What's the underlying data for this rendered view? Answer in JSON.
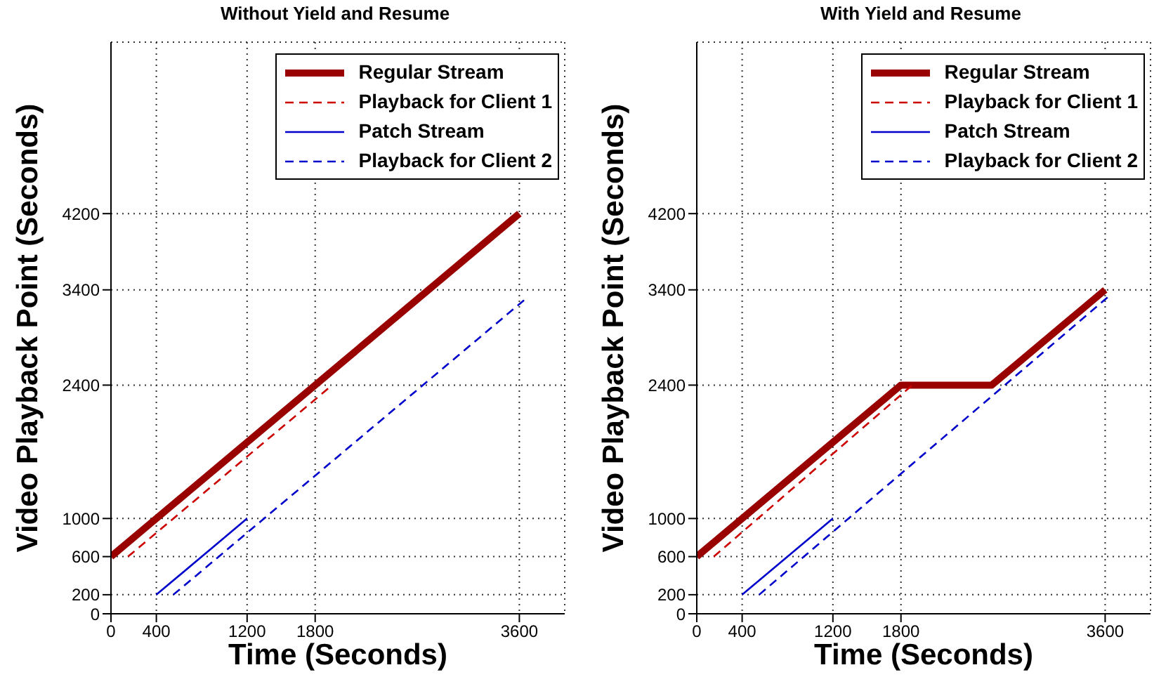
{
  "chart_data": [
    {
      "type": "line",
      "title": "Without Yield and Resume",
      "xlabel": "Time (Seconds)",
      "ylabel": "Video Playback Point (Seconds)",
      "xlim": [
        0,
        4000
      ],
      "ylim": [
        0,
        6000
      ],
      "xticks": [
        0,
        400,
        1200,
        1800,
        3600
      ],
      "yticks": [
        0,
        200,
        600,
        1000,
        2400,
        3400,
        4200
      ],
      "grid": true,
      "legend": "top right",
      "series": [
        {
          "name": "Regular Stream",
          "color": "#990000",
          "line_style": "solid",
          "x": [
            0,
            3600
          ],
          "values": [
            600,
            4200
          ]
        },
        {
          "name": "Playback for Client 1",
          "color": "#cc0000",
          "line_style": "dashed",
          "x": [
            150,
            1950
          ],
          "values": [
            600,
            2400
          ]
        },
        {
          "name": "Patch Stream",
          "color": "#0000cc",
          "line_style": "solid",
          "x": [
            400,
            1200
          ],
          "values": [
            200,
            1000
          ]
        },
        {
          "name": "Playback for Client 2",
          "color": "#0000cc",
          "line_style": "dashed",
          "x": [
            550,
            3650
          ],
          "values": [
            200,
            3300
          ]
        }
      ]
    },
    {
      "type": "line",
      "title": "With Yield and Resume",
      "xlabel": "Time (Seconds)",
      "ylabel": "Video Playback Point (Seconds)",
      "xlim": [
        0,
        4000
      ],
      "ylim": [
        0,
        6000
      ],
      "xticks": [
        0,
        400,
        1200,
        1800,
        3600
      ],
      "yticks": [
        0,
        200,
        600,
        1000,
        2400,
        3400,
        4200
      ],
      "grid": true,
      "legend": "top right",
      "series": [
        {
          "name": "Regular Stream",
          "color": "#990000",
          "line_style": "solid",
          "x": [
            0,
            1800,
            2600,
            3600
          ],
          "values": [
            600,
            2400,
            2400,
            3400
          ]
        },
        {
          "name": "Playback for Client 1",
          "color": "#cc0000",
          "line_style": "dashed",
          "x": [
            150,
            1900
          ],
          "values": [
            600,
            2400
          ]
        },
        {
          "name": "Patch Stream",
          "color": "#0000cc",
          "line_style": "solid",
          "x": [
            400,
            1200
          ],
          "values": [
            200,
            1000
          ]
        },
        {
          "name": "Playback for Client 2",
          "color": "#0000cc",
          "line_style": "dashed",
          "x": [
            550,
            3650
          ],
          "values": [
            200,
            3350
          ]
        }
      ]
    }
  ]
}
